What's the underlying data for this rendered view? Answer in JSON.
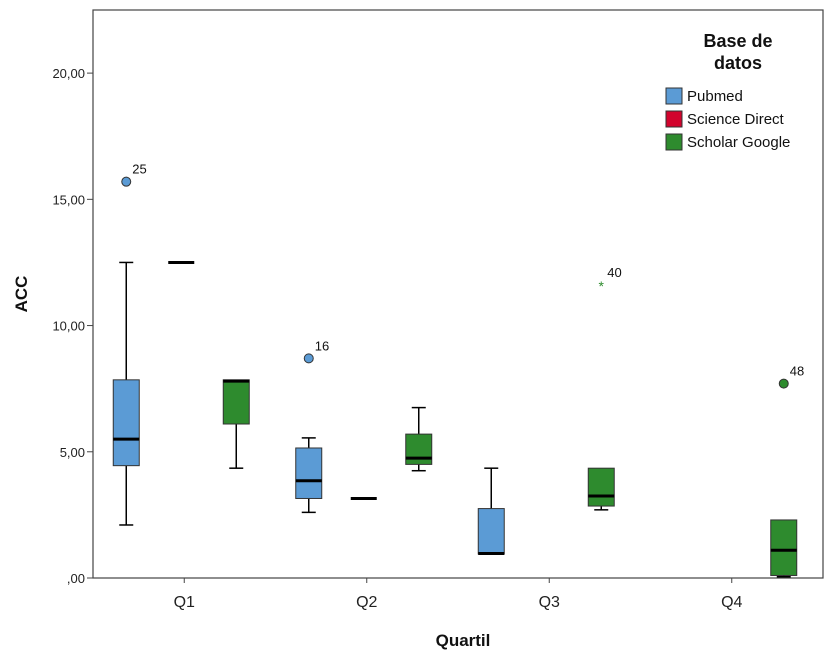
{
  "chart_data": {
    "type": "boxplot",
    "xlabel": "Quartil",
    "ylabel": "ACC",
    "categories": [
      "Q1",
      "Q2",
      "Q3",
      "Q4"
    ],
    "ylim": [
      0,
      22.5
    ],
    "yticks": [
      0,
      5,
      10,
      15,
      20
    ],
    "ytick_labels": [
      ",00",
      "5,00",
      "10,00",
      "15,00",
      "20,00"
    ],
    "grid": false,
    "legend": {
      "title_lines": [
        "Base de",
        "datos"
      ],
      "placement": "top-right"
    },
    "series": [
      {
        "name": "Pubmed",
        "color": "#5b9bd5",
        "boxes": [
          {
            "category": "Q1",
            "min": 2.1,
            "q1": 4.45,
            "median": 5.5,
            "q3": 7.85,
            "max": 12.5,
            "outliers": [
              {
                "value": 15.7,
                "label": "25",
                "marker": "circle"
              }
            ]
          },
          {
            "category": "Q2",
            "min": 2.6,
            "q1": 3.15,
            "median": 3.85,
            "q3": 5.15,
            "max": 5.55,
            "outliers": [
              {
                "value": 8.7,
                "label": "16",
                "marker": "circle"
              }
            ]
          },
          {
            "category": "Q3",
            "min": 0.95,
            "q1": 0.95,
            "median": 0.97,
            "q3": 2.75,
            "max": 4.35,
            "outliers": []
          }
        ]
      },
      {
        "name": "Science Direct",
        "color": "#d2042d",
        "boxes": [
          {
            "category": "Q1",
            "min": 12.5,
            "q1": 12.5,
            "median": 12.5,
            "q3": 12.5,
            "max": 12.5,
            "outliers": []
          },
          {
            "category": "Q2",
            "min": 3.15,
            "q1": 3.15,
            "median": 3.15,
            "q3": 3.15,
            "max": 3.15,
            "outliers": []
          }
        ]
      },
      {
        "name": "Scholar Google",
        "color": "#2e8b2e",
        "boxes": [
          {
            "category": "Q1",
            "min": 4.35,
            "q1": 6.1,
            "median": 7.8,
            "q3": 7.85,
            "max": 7.85,
            "outliers": []
          },
          {
            "category": "Q2",
            "min": 4.25,
            "q1": 4.5,
            "median": 4.75,
            "q3": 5.7,
            "max": 6.75,
            "outliers": []
          },
          {
            "category": "Q3",
            "min": 2.7,
            "q1": 2.85,
            "median": 3.25,
            "q3": 4.35,
            "max": 4.35,
            "outliers": [
              {
                "value": 11.6,
                "label": "40",
                "marker": "star"
              }
            ]
          },
          {
            "category": "Q4",
            "min": 0.05,
            "q1": 0.1,
            "median": 1.1,
            "q3": 2.3,
            "max": 2.3,
            "outliers": [
              {
                "value": 7.7,
                "label": "48",
                "marker": "circle"
              }
            ]
          }
        ]
      }
    ]
  }
}
